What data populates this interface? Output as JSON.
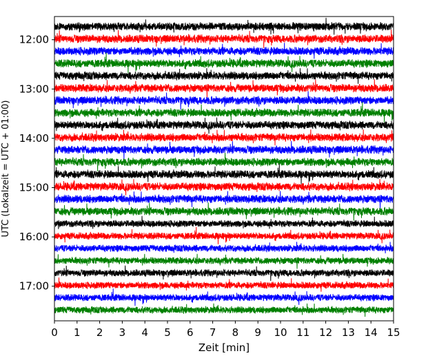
{
  "chart_data": {
    "type": "line",
    "title": "",
    "xlabel": "Zeit  [min]",
    "ylabel": "UTC (Lokalzeit = UTC + 01:00)",
    "xlim": [
      0,
      15
    ],
    "x_ticks": [
      "0",
      "1",
      "2",
      "3",
      "4",
      "5",
      "6",
      "7",
      "8",
      "9",
      "10",
      "11",
      "12",
      "13",
      "14",
      "15"
    ],
    "y_ticks": [
      "12:00",
      "13:00",
      "14:00",
      "15:00",
      "16:00",
      "17:00"
    ],
    "trace_interval_min": 15,
    "first_trace": "11:45",
    "trace_count": 24,
    "trace_colors": [
      "#000000",
      "#ff0000",
      "#0000ff",
      "#008000"
    ],
    "grid": false
  }
}
